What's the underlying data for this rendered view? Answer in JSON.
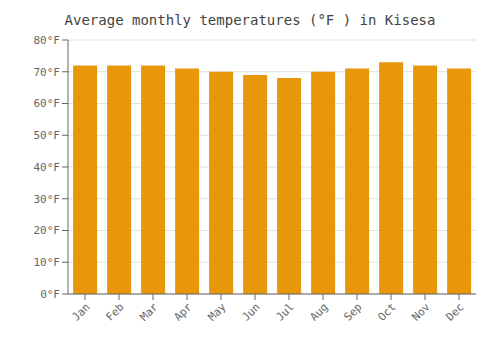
{
  "chart_data": {
    "type": "bar",
    "title": "Average monthly temperatures (°F ) in Kisesa",
    "categories": [
      "Jan",
      "Feb",
      "Mar",
      "Apr",
      "May",
      "Jun",
      "Jul",
      "Aug",
      "Sep",
      "Oct",
      "Nov",
      "Dec"
    ],
    "values": [
      72,
      72,
      72,
      71,
      70,
      69,
      68,
      70,
      71,
      73,
      72,
      71
    ],
    "color": "#E8960A",
    "ylim": [
      0,
      80
    ],
    "yticks": [
      {
        "value": 0,
        "label": "0°F"
      },
      {
        "value": 10,
        "label": "10°F"
      },
      {
        "value": 20,
        "label": "20°F"
      },
      {
        "value": 30,
        "label": "30°F"
      },
      {
        "value": 40,
        "label": "40°F"
      },
      {
        "value": 50,
        "label": "50°F"
      },
      {
        "value": 60,
        "label": "60°F"
      },
      {
        "value": 70,
        "label": "70°F"
      },
      {
        "value": 80,
        "label": "80°F"
      }
    ],
    "grid": true
  }
}
